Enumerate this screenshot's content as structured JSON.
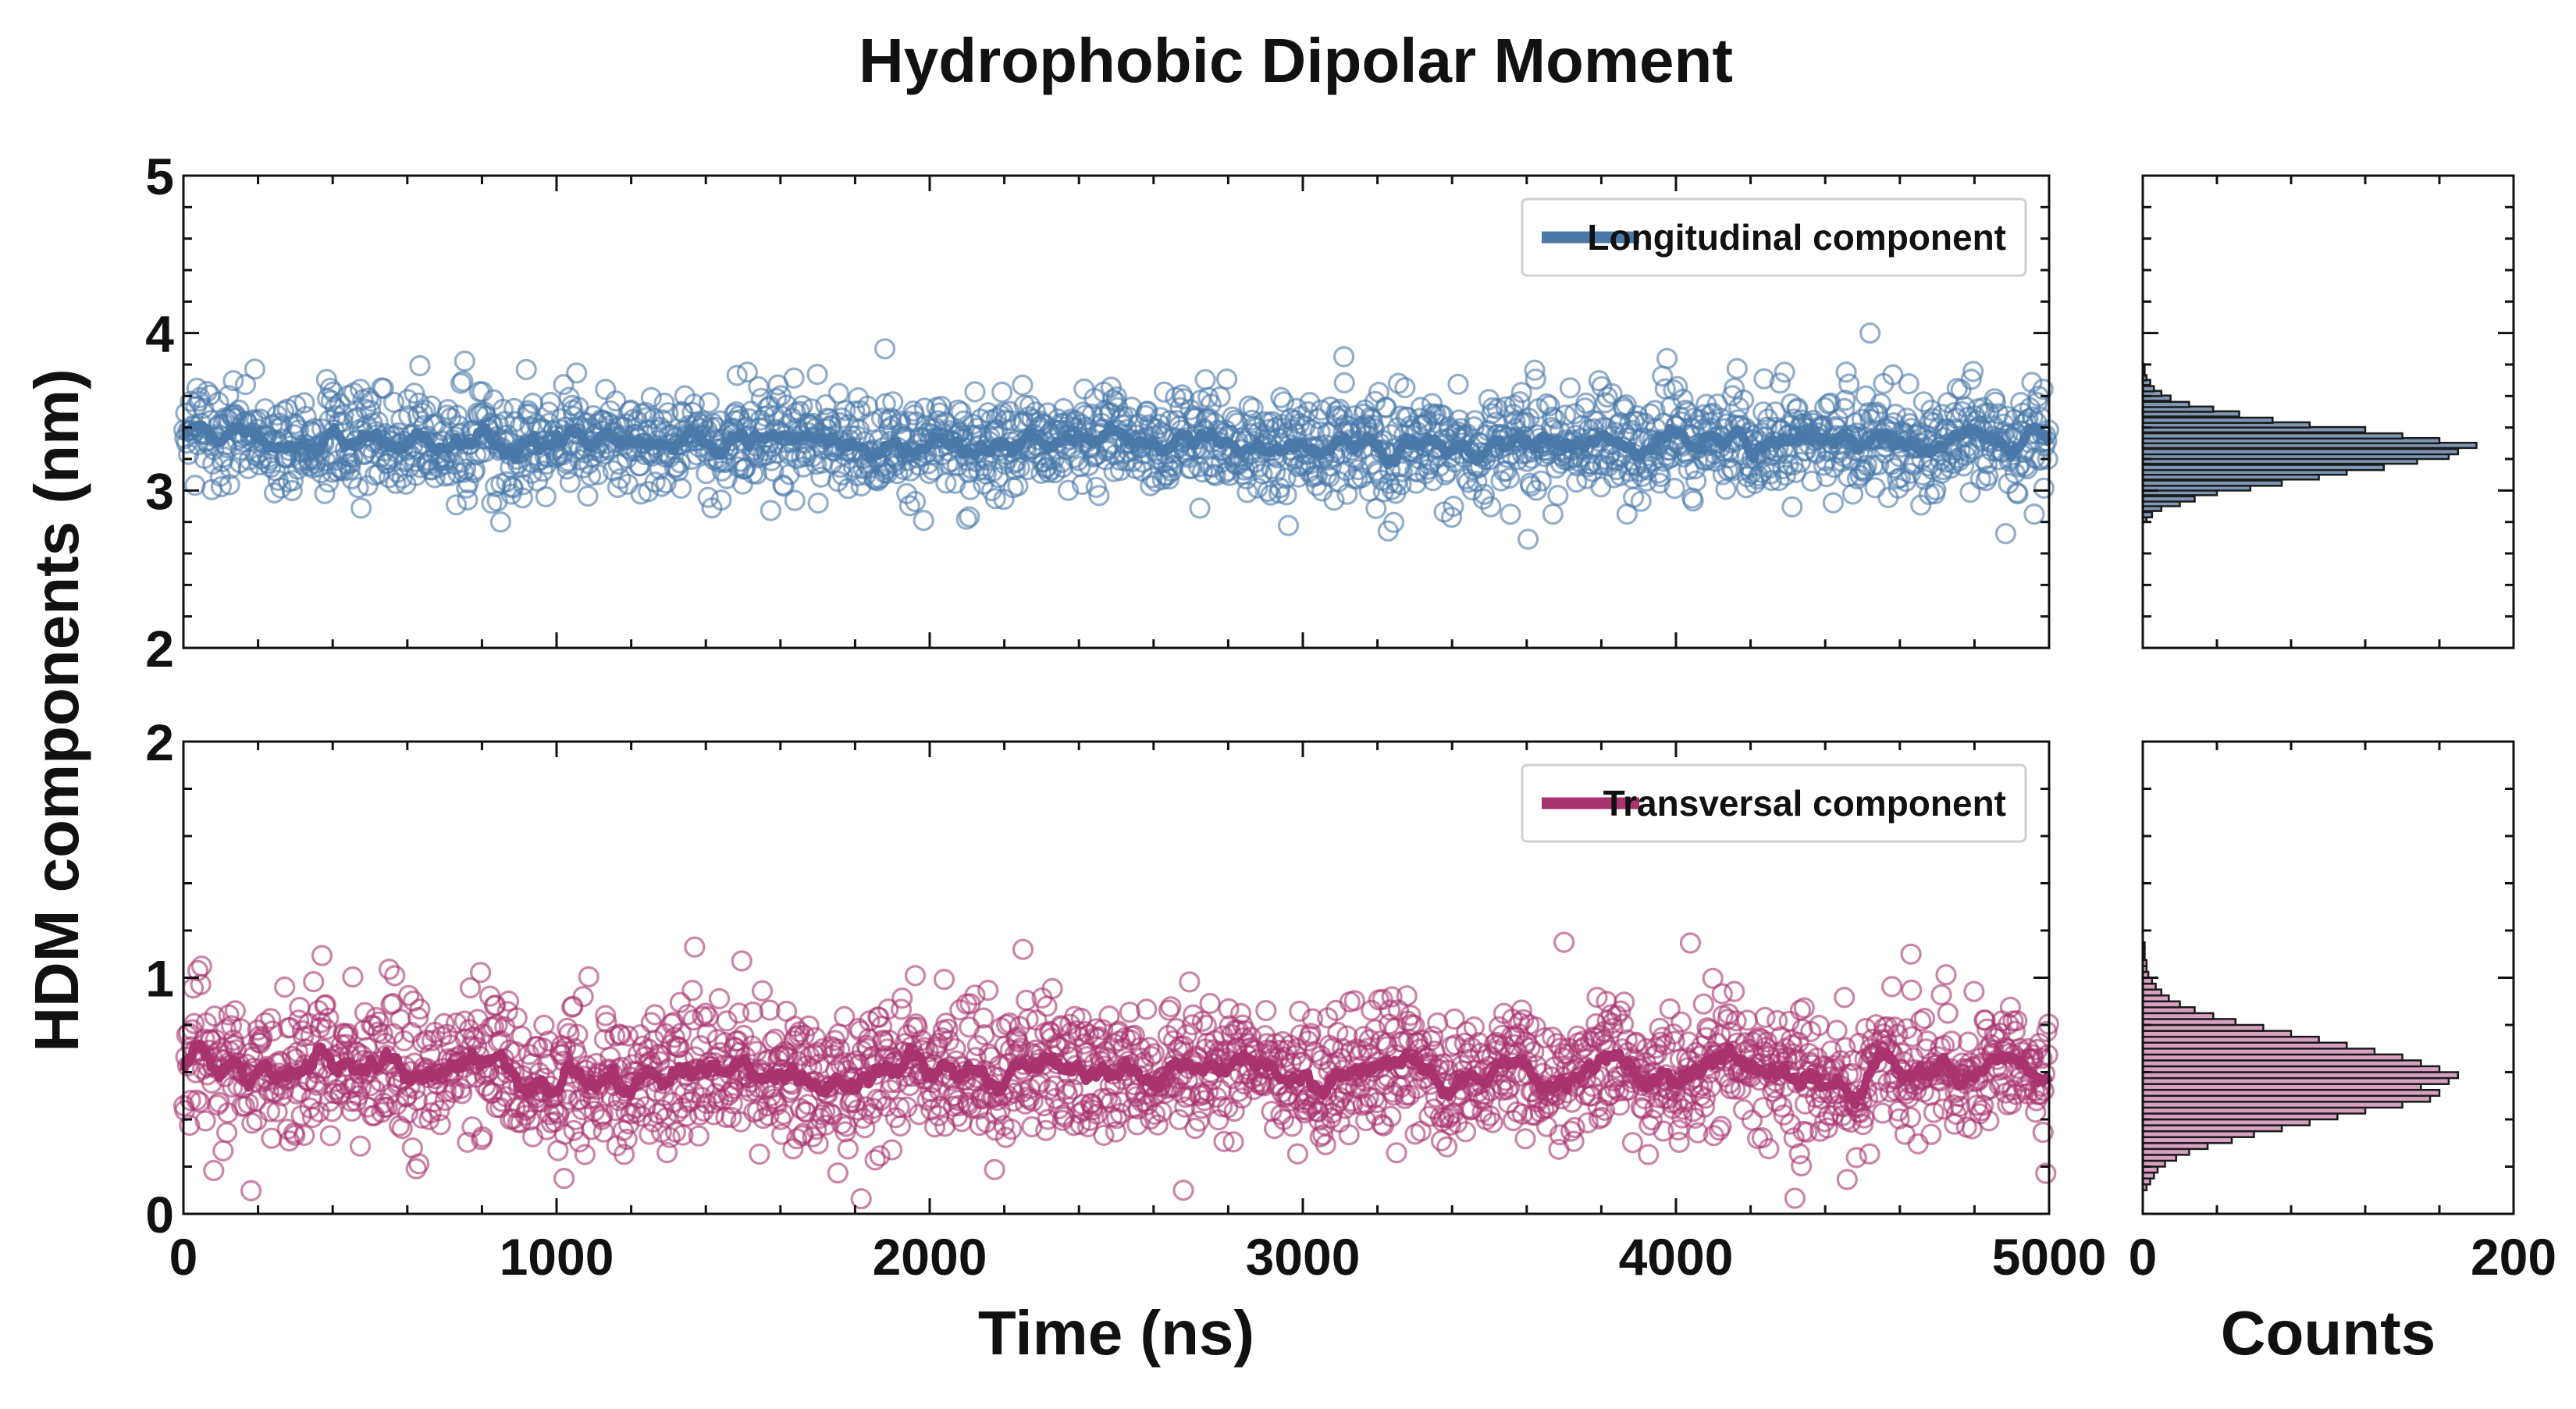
{
  "figure": {
    "title": "Hydrophobic Dipolar Moment",
    "ylabel": "HDM components (nm)"
  },
  "chart_data": [
    {
      "type": "scatter",
      "panel": "top-left",
      "xlabel": "",
      "ylabel": "HDM components (nm)",
      "xlim": [
        0,
        5000
      ],
      "ylim": [
        2,
        5
      ],
      "yticks": [
        "2",
        "3",
        "4",
        "5"
      ],
      "legend": {
        "label": "Longitudinal component",
        "placement": "top-right"
      },
      "series": [
        {
          "name": "Longitudinal component",
          "kind": "scatter-with-running-mean",
          "point_count": 2000,
          "mean": 3.3,
          "spread_sd": 0.17,
          "x_range": [
            0,
            5000
          ],
          "notable_points": [
            {
              "x": 850,
              "y": 2.8
            },
            {
              "x": 1880,
              "y": 3.9
            },
            {
              "x": 3110,
              "y": 3.85
            },
            {
              "x": 4520,
              "y": 4.0
            },
            {
              "x": 3670,
              "y": 2.85
            },
            {
              "x": 4960,
              "y": 2.85
            }
          ]
        }
      ],
      "grid": false
    },
    {
      "type": "scatter",
      "panel": "bottom-left",
      "xlabel": "Time (ns)",
      "ylabel": "HDM components (nm)",
      "xlim": [
        0,
        5000
      ],
      "ylim": [
        0,
        2
      ],
      "xticks": [
        "0",
        "1000",
        "2000",
        "3000",
        "4000",
        "5000"
      ],
      "yticks": [
        "0",
        "1",
        "2"
      ],
      "legend": {
        "label": "Transversal component",
        "placement": "top-right"
      },
      "series": [
        {
          "name": "Transversal component",
          "kind": "scatter-with-running-mean",
          "point_count": 2000,
          "mean": 0.6,
          "spread_sd": 0.15,
          "x_range": [
            0,
            5000
          ],
          "notable_points": [
            {
              "x": 1370,
              "y": 1.13
            },
            {
              "x": 2250,
              "y": 1.12
            },
            {
              "x": 3700,
              "y": 1.15
            },
            {
              "x": 4630,
              "y": 1.1
            },
            {
              "x": 2680,
              "y": 0.1
            },
            {
              "x": 1020,
              "y": 0.15
            }
          ]
        }
      ],
      "grid": false
    },
    {
      "type": "bar",
      "orientation": "horizontal",
      "panel": "top-right",
      "xlabel": "",
      "xlim": [
        0,
        200
      ],
      "ylim": [
        2,
        5
      ],
      "bin_width": 0.033,
      "bins": [
        [
          2.8,
          2
        ],
        [
          2.83,
          5
        ],
        [
          2.87,
          10
        ],
        [
          2.9,
          20
        ],
        [
          2.93,
          28
        ],
        [
          2.97,
          40
        ],
        [
          3.0,
          58
        ],
        [
          3.03,
          75
        ],
        [
          3.07,
          95
        ],
        [
          3.1,
          110
        ],
        [
          3.13,
          130
        ],
        [
          3.17,
          148
        ],
        [
          3.2,
          165
        ],
        [
          3.23,
          170
        ],
        [
          3.27,
          180
        ],
        [
          3.3,
          160
        ],
        [
          3.33,
          140
        ],
        [
          3.37,
          120
        ],
        [
          3.4,
          90
        ],
        [
          3.43,
          70
        ],
        [
          3.47,
          52
        ],
        [
          3.5,
          38
        ],
        [
          3.53,
          25
        ],
        [
          3.57,
          15
        ],
        [
          3.6,
          10
        ],
        [
          3.63,
          6
        ],
        [
          3.67,
          4
        ],
        [
          3.7,
          2
        ],
        [
          3.73,
          1
        ],
        [
          3.77,
          1
        ]
      ]
    },
    {
      "type": "bar",
      "orientation": "horizontal",
      "panel": "bottom-right",
      "xlabel": "Counts",
      "xlim": [
        0,
        200
      ],
      "ylim": [
        0,
        2
      ],
      "xticks": [
        "0",
        "200"
      ],
      "bin_width": 0.025,
      "bins": [
        [
          0.1,
          2
        ],
        [
          0.125,
          4
        ],
        [
          0.15,
          6
        ],
        [
          0.175,
          8
        ],
        [
          0.2,
          12
        ],
        [
          0.225,
          18
        ],
        [
          0.25,
          25
        ],
        [
          0.275,
          35
        ],
        [
          0.3,
          48
        ],
        [
          0.325,
          60
        ],
        [
          0.35,
          75
        ],
        [
          0.375,
          90
        ],
        [
          0.4,
          105
        ],
        [
          0.425,
          120
        ],
        [
          0.45,
          140
        ],
        [
          0.475,
          155
        ],
        [
          0.5,
          160
        ],
        [
          0.525,
          150
        ],
        [
          0.55,
          165
        ],
        [
          0.575,
          170
        ],
        [
          0.6,
          160
        ],
        [
          0.625,
          150
        ],
        [
          0.65,
          140
        ],
        [
          0.675,
          125
        ],
        [
          0.7,
          110
        ],
        [
          0.725,
          95
        ],
        [
          0.75,
          80
        ],
        [
          0.775,
          65
        ],
        [
          0.8,
          50
        ],
        [
          0.825,
          38
        ],
        [
          0.85,
          28
        ],
        [
          0.875,
          20
        ],
        [
          0.9,
          14
        ],
        [
          0.925,
          10
        ],
        [
          0.95,
          7
        ],
        [
          0.975,
          5
        ],
        [
          1.0,
          3
        ],
        [
          1.025,
          2
        ],
        [
          1.05,
          2
        ],
        [
          1.075,
          1
        ],
        [
          1.1,
          1
        ],
        [
          1.125,
          1
        ]
      ]
    }
  ],
  "colors": {
    "longitudinal": "#4a78a8",
    "transversal": "#a8336e",
    "hist_top": "#7f96b4",
    "hist_bottom": "#d8a1bf",
    "hist_edge": "#1a1a1a",
    "axes": "#111111"
  }
}
